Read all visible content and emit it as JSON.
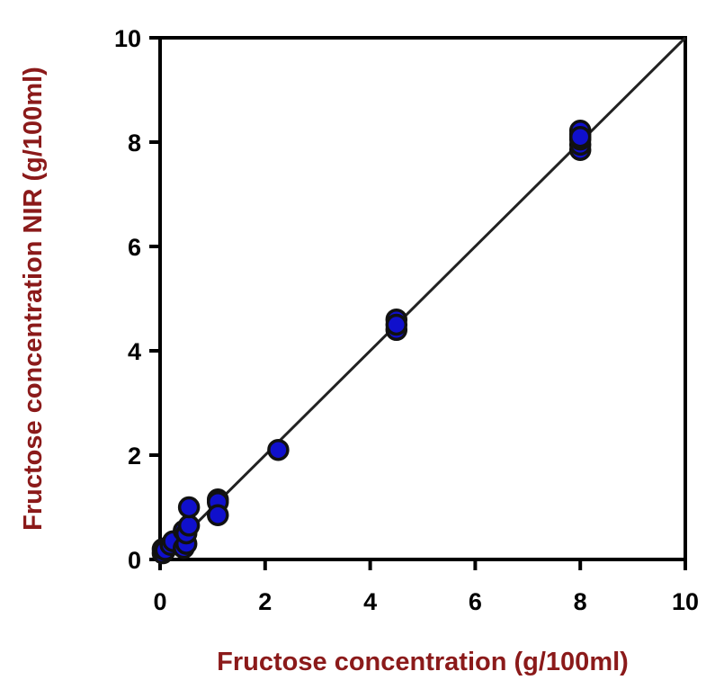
{
  "chart_data": {
    "type": "scatter",
    "xlabel": "Fructose concentration (g/100ml)",
    "ylabel": "Fructose concentration NIR (g/100ml)",
    "xlim": [
      0,
      10
    ],
    "ylim": [
      0,
      10
    ],
    "x_ticks": [
      {
        "value": 0,
        "label": "0"
      },
      {
        "value": 2,
        "label": "2"
      },
      {
        "value": 4,
        "label": "4"
      },
      {
        "value": 6,
        "label": "6"
      },
      {
        "value": 8,
        "label": "8"
      },
      {
        "value": 10,
        "label": "10"
      }
    ],
    "y_ticks": [
      {
        "value": 0,
        "label": "0"
      },
      {
        "value": 2,
        "label": "2"
      },
      {
        "value": 4,
        "label": "4"
      },
      {
        "value": 6,
        "label": "6"
      },
      {
        "value": 8,
        "label": "8"
      },
      {
        "value": 10,
        "label": "10"
      }
    ],
    "grid": false,
    "marker_color": "#1010cc",
    "line_color": "#222222",
    "fit_line": {
      "x": [
        0,
        10
      ],
      "y": [
        0,
        10
      ]
    },
    "points": [
      {
        "x": 0.05,
        "y": 0.12
      },
      {
        "x": 0.05,
        "y": 0.2
      },
      {
        "x": 0.1,
        "y": 0.18
      },
      {
        "x": 0.2,
        "y": 0.28
      },
      {
        "x": 0.25,
        "y": 0.35
      },
      {
        "x": 0.45,
        "y": 0.22
      },
      {
        "x": 0.5,
        "y": 0.3
      },
      {
        "x": 0.45,
        "y": 0.55
      },
      {
        "x": 0.5,
        "y": 0.5
      },
      {
        "x": 0.55,
        "y": 0.65
      },
      {
        "x": 0.55,
        "y": 1.0
      },
      {
        "x": 1.1,
        "y": 1.15
      },
      {
        "x": 1.1,
        "y": 1.1
      },
      {
        "x": 1.1,
        "y": 0.85
      },
      {
        "x": 2.25,
        "y": 2.1
      },
      {
        "x": 4.5,
        "y": 4.4
      },
      {
        "x": 4.5,
        "y": 4.6
      },
      {
        "x": 4.5,
        "y": 4.5
      },
      {
        "x": 8.0,
        "y": 7.85
      },
      {
        "x": 8.0,
        "y": 7.95
      },
      {
        "x": 8.0,
        "y": 8.05
      },
      {
        "x": 8.0,
        "y": 8.15
      },
      {
        "x": 8.0,
        "y": 8.22
      },
      {
        "x": 8.0,
        "y": 8.1
      }
    ]
  }
}
